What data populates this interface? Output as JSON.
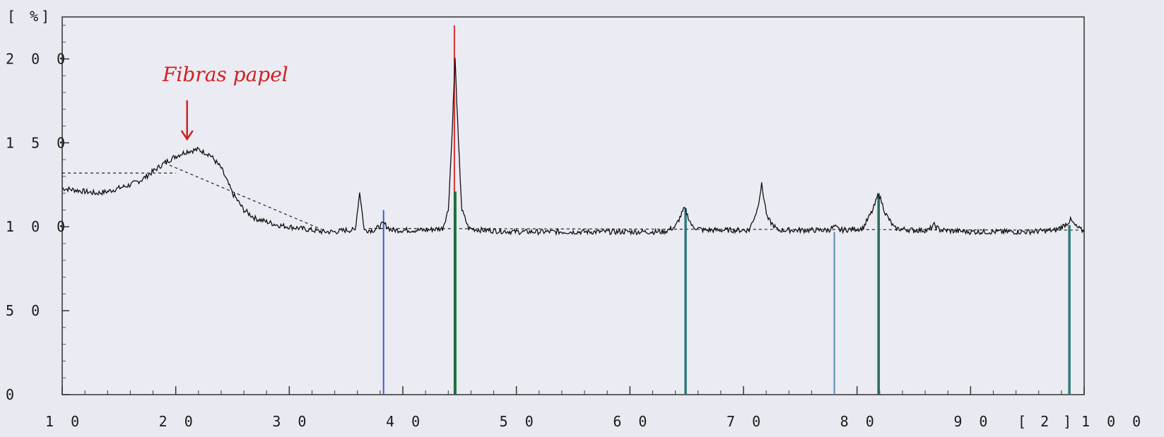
{
  "chart_data": {
    "type": "line",
    "title": "",
    "xlabel": "",
    "ylabel": "",
    "y_unit": "[ %]",
    "x_unit": "[ 2 ]",
    "xlim": [
      10,
      100
    ],
    "ylim": [
      0,
      225
    ],
    "x_ticks": [
      10,
      20,
      30,
      40,
      50,
      60,
      70,
      80,
      90,
      100
    ],
    "x_tick_labels": [
      "1 0",
      "2 0",
      "3 0",
      "4 0",
      "5 0",
      "6 0",
      "7 0",
      "8 0",
      "9 0",
      "1 0 0"
    ],
    "y_ticks": [
      0,
      50,
      100,
      150,
      200
    ],
    "y_tick_labels": [
      "0",
      "5 0",
      "1 0 0",
      "1 5 0",
      "2 0 0"
    ],
    "grid": false,
    "series": [
      {
        "values": [
          [
            10,
            123
          ],
          [
            11,
            122
          ],
          [
            12,
            121
          ],
          [
            13,
            120
          ],
          [
            14,
            121
          ],
          [
            15,
            123
          ],
          [
            16,
            125
          ],
          [
            17,
            128
          ],
          [
            18,
            133
          ],
          [
            19,
            138
          ],
          [
            20,
            142
          ],
          [
            21,
            145
          ],
          [
            22,
            146
          ],
          [
            23,
            143
          ],
          [
            24,
            135
          ],
          [
            25,
            120
          ],
          [
            26,
            110
          ],
          [
            27,
            105
          ],
          [
            28,
            103
          ],
          [
            29,
            101
          ],
          [
            30,
            100
          ],
          [
            31,
            99
          ],
          [
            32,
            98
          ],
          [
            33,
            97
          ],
          [
            34,
            97
          ],
          [
            35,
            98
          ],
          [
            35.8,
            98
          ],
          [
            36.2,
            121
          ],
          [
            36.6,
            98
          ],
          [
            37.5,
            98
          ],
          [
            38.3,
            102
          ],
          [
            39,
            98
          ],
          [
            40,
            98
          ],
          [
            42,
            98
          ],
          [
            43.5,
            99
          ],
          [
            44,
            110
          ],
          [
            44.3,
            150
          ],
          [
            44.6,
            200
          ],
          [
            44.9,
            150
          ],
          [
            45.2,
            110
          ],
          [
            45.8,
            99
          ],
          [
            47,
            98
          ],
          [
            50,
            97
          ],
          [
            55,
            97
          ],
          [
            60,
            97
          ],
          [
            63,
            97
          ],
          [
            64,
            100
          ],
          [
            64.8,
            111
          ],
          [
            65.5,
            100
          ],
          [
            66.5,
            98
          ],
          [
            68,
            98
          ],
          [
            70.5,
            98
          ],
          [
            71.2,
            110
          ],
          [
            71.6,
            125
          ],
          [
            72.1,
            105
          ],
          [
            73,
            98
          ],
          [
            75,
            98
          ],
          [
            77.5,
            98
          ],
          [
            78,
            100
          ],
          [
            78.5,
            98
          ],
          [
            80.5,
            99
          ],
          [
            81.4,
            110
          ],
          [
            81.9,
            120
          ],
          [
            82.5,
            108
          ],
          [
            83.3,
            99
          ],
          [
            85,
            98
          ],
          [
            86.3,
            98
          ],
          [
            86.8,
            101
          ],
          [
            87.3,
            98
          ],
          [
            90,
            97
          ],
          [
            95,
            97
          ],
          [
            97.5,
            98
          ],
          [
            98.3,
            101
          ],
          [
            98.8,
            104
          ],
          [
            99.3,
            100
          ],
          [
            100,
            97
          ]
        ]
      }
    ],
    "background_lines": [
      {
        "kind": "horizontal-dashed",
        "y": 132,
        "x_range": [
          10,
          20
        ]
      },
      {
        "kind": "diagonal-dashed",
        "from": [
          19,
          138
        ],
        "to": [
          33,
          98
        ]
      },
      {
        "kind": "baseline-dashed",
        "from": [
          37,
          99
        ],
        "to": [
          100,
          98
        ]
      }
    ],
    "reference_lines": [
      {
        "x": 38.3,
        "height": 110,
        "color": "#3a5fc8",
        "style": "blue"
      },
      {
        "x": 44.6,
        "height": 220,
        "color": "#1e6e3e",
        "style": "green-with-red-top"
      },
      {
        "x": 64.9,
        "height": 111,
        "color": "#2f7a7a",
        "style": "teal"
      },
      {
        "x": 78.0,
        "height": 97,
        "color": "#5a8ab0",
        "style": "thin-blue"
      },
      {
        "x": 81.9,
        "height": 120,
        "color": "#2f6a5a",
        "style": "teal"
      },
      {
        "x": 98.7,
        "height": 101,
        "color": "#2f7a7a",
        "style": "teal"
      }
    ],
    "annotation": {
      "text": "Fibras papel",
      "color": "#d02020",
      "points_to": [
        21,
        148
      ]
    }
  }
}
